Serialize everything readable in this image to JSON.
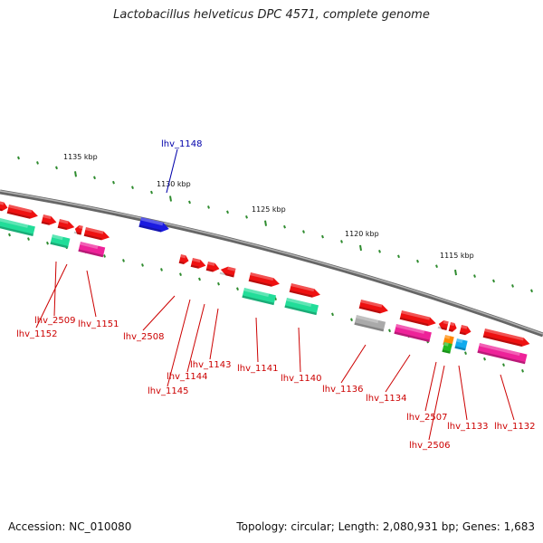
{
  "title": "Lactobacillus helveticus DPC 4571, complete genome",
  "accession": "Accession: NC_010080",
  "summary": "Topology: circular; Length: 2,080,931 bp; Genes: 1,683",
  "scale_labels": [
    "1135 kbp",
    "1130 kbp",
    "1125 kbp",
    "1120 kbp",
    "1115 kbp"
  ],
  "colors": {
    "backbone": "#8a8a8a",
    "tick": "#2e8b2e",
    "gene_red": "#ee1111",
    "gene_blue": "#1a1ae0",
    "gene_green": "#22dd99",
    "gene_magenta": "#ee2299",
    "gene_gray": "#aaaaaa",
    "gene_orange": "#ff8800",
    "gene_lime": "#22bb22",
    "gene_cyan": "#11aaee",
    "label_red": "#cc0000",
    "label_blue": "#0000aa"
  },
  "gene_labels": [
    {
      "name": "lhv_1148",
      "color": "blue"
    },
    {
      "name": "lhv_2509",
      "color": "red"
    },
    {
      "name": "lhv_1152",
      "color": "red"
    },
    {
      "name": "lhv_1151",
      "color": "red"
    },
    {
      "name": "lhv_2508",
      "color": "red"
    },
    {
      "name": "lhv_1144",
      "color": "red"
    },
    {
      "name": "lhv_1145",
      "color": "red"
    },
    {
      "name": "lhv_1143",
      "color": "red"
    },
    {
      "name": "lhv_1141",
      "color": "red"
    },
    {
      "name": "lhv_1140",
      "color": "red"
    },
    {
      "name": "lhv_1136",
      "color": "red"
    },
    {
      "name": "lhv_1134",
      "color": "red"
    },
    {
      "name": "lhv_2507",
      "color": "red"
    },
    {
      "name": "lhv_2506",
      "color": "red"
    },
    {
      "name": "lhv_1133",
      "color": "red"
    },
    {
      "name": "lhv_1132",
      "color": "red"
    }
  ]
}
